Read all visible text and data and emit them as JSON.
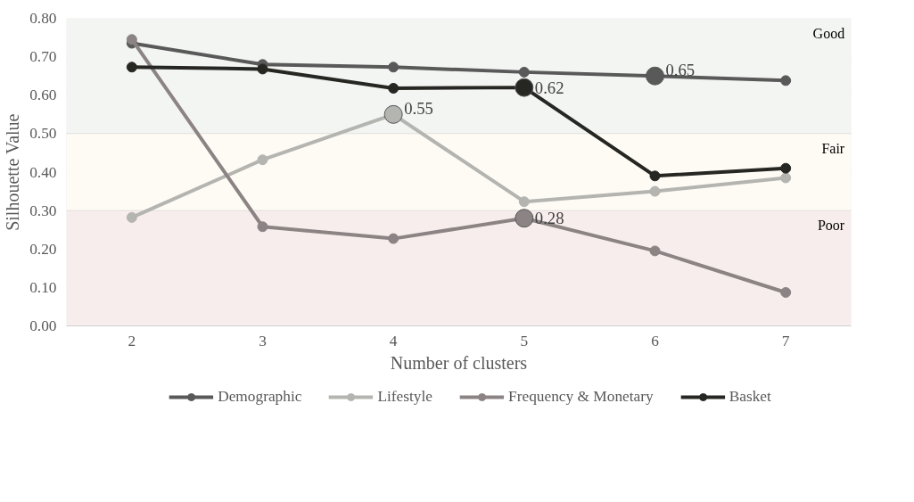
{
  "chart_data": {
    "type": "line",
    "xlabel": "Number of clusters",
    "ylabel": "Silhouette Value",
    "categories": [
      "2",
      "3",
      "4",
      "5",
      "6",
      "7"
    ],
    "series": [
      {
        "name": "Demographic",
        "color": "#595959",
        "values": [
          0.735,
          0.68,
          0.673,
          0.66,
          0.65,
          0.638
        ],
        "value_labels": [
          null,
          null,
          null,
          null,
          "0.65",
          null
        ]
      },
      {
        "name": "Lifestyle",
        "color": "#b4b4b0",
        "values": [
          0.282,
          0.432,
          0.55,
          0.323,
          0.35,
          0.385
        ],
        "value_labels": [
          null,
          null,
          "0.55",
          null,
          null,
          null
        ]
      },
      {
        "name": "Frequency & Monetary",
        "color": "#8c8484",
        "values": [
          0.745,
          0.258,
          0.227,
          0.28,
          0.195,
          0.087
        ],
        "value_labels": [
          null,
          null,
          null,
          "0.28",
          null,
          null
        ]
      },
      {
        "name": "Basket",
        "color": "#262622",
        "values": [
          0.673,
          0.668,
          0.618,
          0.62,
          0.39,
          0.41
        ],
        "value_labels": [
          null,
          null,
          null,
          "0.62",
          null,
          null
        ]
      }
    ],
    "ylim": [
      0,
      0.8
    ],
    "yticks": [
      {
        "value": 0,
        "label": "0.00"
      },
      {
        "value": 0.1,
        "label": "0.10"
      },
      {
        "value": 0.2,
        "label": "0.20"
      },
      {
        "value": 0.3,
        "label": "0.30"
      },
      {
        "value": 0.4,
        "label": "0.40"
      },
      {
        "value": 0.5,
        "label": "0.50"
      },
      {
        "value": 0.6,
        "label": "0.60"
      },
      {
        "value": 0.7,
        "label": "0.70"
      },
      {
        "value": 0.8,
        "label": "0.80"
      }
    ],
    "bands": [
      {
        "axis": "y",
        "from": 0.5,
        "to": 0.8,
        "label": "Good",
        "color": "#f3f5f2"
      },
      {
        "axis": "y",
        "from": 0.3,
        "to": 0.5,
        "label": "Fair",
        "color": "#fefbf4"
      },
      {
        "axis": "y",
        "from": 0,
        "to": 0.3,
        "label": "Poor",
        "color": "#f8eded"
      }
    ],
    "grid": "y",
    "legend": "bottom",
    "marker": "circle",
    "line_style": "solid"
  }
}
